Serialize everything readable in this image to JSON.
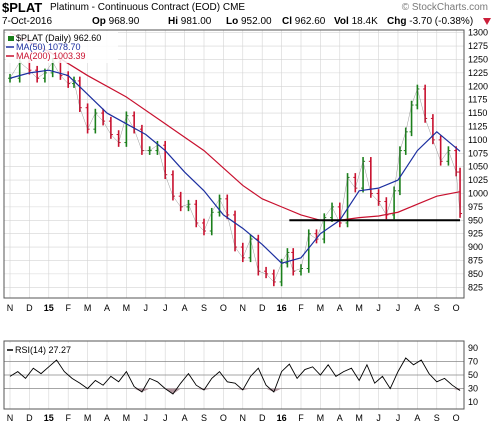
{
  "header": {
    "ticker": "$PLAT",
    "description": "Platinum - Continuous Contract (EOD)",
    "exchange": "CME",
    "credit": "© StockCharts.com",
    "date": "7-Oct-2016",
    "open_label": "Op",
    "open_value": "968.90",
    "high_label": "Hi",
    "high_value": "981.00",
    "low_label": "Lo",
    "low_value": "952.00",
    "close_label": "Cl",
    "close_value": "962.60",
    "volume_label": "Vol",
    "volume_value": "18.4K",
    "change_label": "Chg",
    "change_value": "-3.70 (-0.38%)",
    "change_icon": "down-triangle-icon"
  },
  "legend": {
    "price": "$PLAT (Daily) 962.60",
    "ma50": "MA(50) 1078.70",
    "ma200": "MA(200) 1003.39",
    "rsi": "RSI(14) 27.27"
  },
  "colors": {
    "price_up": "#1b7f1b",
    "price_down": "#c8102e",
    "ma50": "#1c2fa0",
    "ma200": "#c8102e",
    "rsi_line": "#000000",
    "rsi_fill": "#9e7a86",
    "grid": "#d4d4d4"
  },
  "chart_data": [
    {
      "type": "line",
      "title": "$PLAT (Daily) 962.60",
      "ylim": [
        805,
        1305
      ],
      "y_ticks": [
        825,
        850,
        875,
        900,
        925,
        950,
        975,
        1000,
        1025,
        1050,
        1075,
        1100,
        1125,
        1150,
        1175,
        1200,
        1225,
        1250,
        1275,
        1300
      ],
      "x_tick_labels": [
        "N",
        "D",
        "15",
        "F",
        "M",
        "A",
        "M",
        "J",
        "J",
        "A",
        "S",
        "O",
        "N",
        "D",
        "16",
        "F",
        "M",
        "A",
        "M",
        "J",
        "J",
        "A",
        "S",
        "O"
      ],
      "x_tick_months": [
        0,
        1,
        2,
        3,
        4,
        5,
        6,
        7,
        8,
        9,
        10,
        11,
        12,
        13,
        14,
        15,
        16,
        17,
        18,
        19,
        20,
        21,
        22,
        23
      ],
      "grid": true,
      "legend_position": "top-left",
      "month_index_note": "x = months from 1 Nov 2014",
      "series": [
        {
          "name": "$PLAT (Daily) 962.60",
          "style": "ohlc",
          "x": [
            0.0,
            0.5,
            1.0,
            1.4,
            1.8,
            2.2,
            2.6,
            3.0,
            3.3,
            3.6,
            4.0,
            4.4,
            4.8,
            5.2,
            5.6,
            6.0,
            6.4,
            6.8,
            7.2,
            7.6,
            8.0,
            8.4,
            8.8,
            9.2,
            9.6,
            10.0,
            10.4,
            10.8,
            11.2,
            11.6,
            12.0,
            12.4,
            12.8,
            13.2,
            13.6,
            14.0,
            14.3,
            14.6,
            15.0,
            15.4,
            15.8,
            16.2,
            16.6,
            17.0,
            17.4,
            17.8,
            18.2,
            18.6,
            19.0,
            19.4,
            19.8,
            20.1,
            20.4,
            20.7,
            21.0,
            21.4,
            21.8,
            22.2,
            22.6,
            23.0,
            23.2
          ],
          "values": [
            1215,
            1245,
            1230,
            1215,
            1225,
            1245,
            1220,
            1205,
            1210,
            1160,
            1120,
            1150,
            1135,
            1110,
            1095,
            1145,
            1120,
            1080,
            1080,
            1090,
            1035,
            995,
            975,
            980,
            945,
            930,
            965,
            990,
            960,
            900,
            880,
            915,
            855,
            850,
            835,
            870,
            890,
            855,
            860,
            925,
            915,
            955,
            975,
            945,
            1030,
            1010,
            1060,
            1000,
            985,
            960,
            1005,
            1080,
            1115,
            1165,
            1195,
            1140,
            1100,
            1060,
            1080,
            1040,
            962.6
          ]
        },
        {
          "name": "MA(50) 1078.70",
          "x": [
            0.0,
            1.0,
            2.0,
            3.0,
            4.0,
            5.0,
            6.0,
            7.0,
            8.0,
            9.0,
            10.0,
            11.0,
            12.0,
            13.0,
            14.0,
            15.0,
            16.0,
            17.0,
            18.0,
            19.0,
            20.0,
            21.0,
            22.0,
            23.2
          ],
          "values": [
            1215,
            1225,
            1230,
            1220,
            1185,
            1150,
            1130,
            1110,
            1080,
            1040,
            1005,
            960,
            935,
            905,
            870,
            880,
            925,
            950,
            1005,
            1010,
            1025,
            1080,
            1115,
            1078.7
          ]
        },
        {
          "name": "MA(200) 1003.39",
          "x": [
            0.0,
            2.0,
            4.0,
            6.0,
            8.0,
            10.0,
            12.0,
            13.0,
            14.0,
            15.0,
            16.0,
            17.0,
            18.0,
            19.0,
            20.0,
            21.0,
            22.0,
            23.2
          ],
          "values": [
            1300,
            1265,
            1220,
            1180,
            1130,
            1080,
            1015,
            990,
            975,
            960,
            950,
            950,
            955,
            958,
            965,
            980,
            995,
            1003.39
          ]
        },
        {
          "name": "",
          "style": "horizontal-line",
          "x": [
            14.4,
            23.2
          ],
          "values": [
            950,
            950
          ]
        }
      ]
    },
    {
      "type": "line",
      "title": "RSI(14) 27.27",
      "ylim": [
        0,
        100
      ],
      "y_ticks": [
        10,
        30,
        50,
        70,
        90
      ],
      "reference_lines": [
        30,
        50,
        70
      ],
      "x_tick_labels": [
        "N",
        "D",
        "15",
        "F",
        "M",
        "A",
        "M",
        "J",
        "J",
        "A",
        "S",
        "O",
        "N",
        "D",
        "16",
        "F",
        "M",
        "A",
        "M",
        "J",
        "J",
        "A",
        "S",
        "O"
      ],
      "grid": true,
      "legend_position": "top-left",
      "series": [
        {
          "name": "RSI(14) 27.27",
          "x": [
            0.0,
            0.4,
            0.8,
            1.2,
            1.6,
            2.0,
            2.4,
            2.8,
            3.2,
            3.6,
            4.0,
            4.4,
            4.8,
            5.2,
            5.6,
            6.0,
            6.4,
            6.8,
            7.2,
            7.6,
            8.0,
            8.4,
            8.8,
            9.2,
            9.6,
            10.0,
            10.4,
            10.8,
            11.2,
            11.6,
            12.0,
            12.4,
            12.8,
            13.2,
            13.6,
            14.0,
            14.4,
            14.8,
            15.2,
            15.6,
            16.0,
            16.4,
            16.8,
            17.2,
            17.6,
            18.0,
            18.4,
            18.8,
            19.2,
            19.6,
            20.0,
            20.4,
            20.8,
            21.2,
            21.6,
            22.0,
            22.4,
            22.8,
            23.2
          ],
          "values": [
            48,
            55,
            45,
            60,
            52,
            62,
            72,
            55,
            45,
            38,
            30,
            42,
            35,
            48,
            40,
            55,
            33,
            25,
            45,
            40,
            30,
            22,
            38,
            52,
            35,
            28,
            45,
            55,
            40,
            38,
            28,
            48,
            60,
            35,
            25,
            55,
            66,
            45,
            58,
            62,
            50,
            65,
            48,
            55,
            60,
            42,
            65,
            38,
            48,
            30,
            55,
            75,
            65,
            72,
            52,
            40,
            45,
            35,
            27.27
          ]
        }
      ]
    }
  ]
}
